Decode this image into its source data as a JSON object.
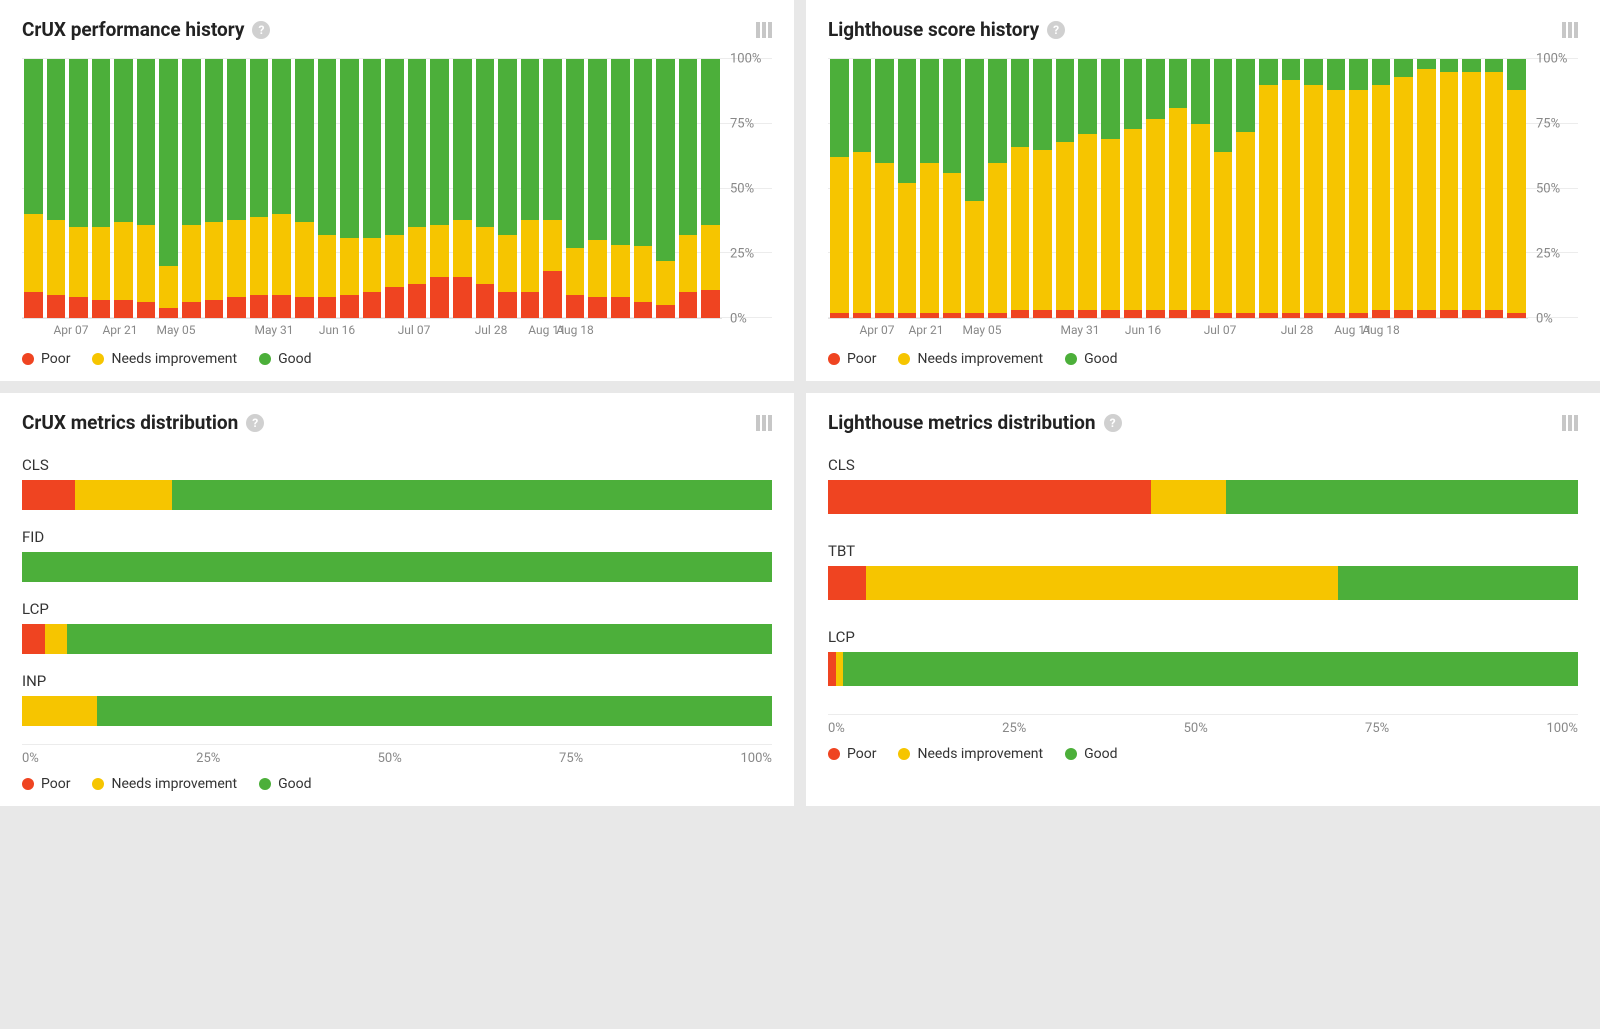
{
  "colors": {
    "poor": "#ef4421",
    "needs": "#f6c500",
    "good": "#4caf3a",
    "gridline": "#ececec",
    "axis_text": "#888888",
    "title_text": "#222222",
    "background": "#ffffff",
    "page_background": "#e8e8e8"
  },
  "legend": {
    "poor": "Poor",
    "needs": "Needs improvement",
    "good": "Good"
  },
  "history_axis": {
    "y_ticks": [
      0,
      25,
      50,
      75,
      100
    ],
    "y_tick_labels": [
      "0%",
      "25%",
      "50%",
      "75%",
      "100%"
    ],
    "x_labels": [
      "Apr 07",
      "Apr 21",
      "May 05",
      "May 31",
      "Jun 16",
      "Jul 07",
      "Jul 28",
      "Aug 11",
      "Aug 18"
    ],
    "x_label_positions_pct": [
      7,
      14,
      22,
      36,
      45,
      56,
      67,
      75,
      79
    ]
  },
  "crux_history": {
    "title": "CrUX performance history",
    "type": "stacked-bar",
    "bars": [
      {
        "poor": 10,
        "needs": 30,
        "good": 60
      },
      {
        "poor": 9,
        "needs": 29,
        "good": 62
      },
      {
        "poor": 8,
        "needs": 27,
        "good": 65
      },
      {
        "poor": 7,
        "needs": 28,
        "good": 65
      },
      {
        "poor": 7,
        "needs": 30,
        "good": 63
      },
      {
        "poor": 6,
        "needs": 30,
        "good": 64
      },
      {
        "poor": 4,
        "needs": 16,
        "good": 80
      },
      {
        "poor": 6,
        "needs": 30,
        "good": 64
      },
      {
        "poor": 7,
        "needs": 30,
        "good": 63
      },
      {
        "poor": 8,
        "needs": 30,
        "good": 62
      },
      {
        "poor": 9,
        "needs": 30,
        "good": 61
      },
      {
        "poor": 9,
        "needs": 31,
        "good": 60
      },
      {
        "poor": 8,
        "needs": 29,
        "good": 63
      },
      {
        "poor": 8,
        "needs": 24,
        "good": 68
      },
      {
        "poor": 9,
        "needs": 22,
        "good": 69
      },
      {
        "poor": 10,
        "needs": 21,
        "good": 69
      },
      {
        "poor": 12,
        "needs": 20,
        "good": 68
      },
      {
        "poor": 13,
        "needs": 22,
        "good": 65
      },
      {
        "poor": 16,
        "needs": 20,
        "good": 64
      },
      {
        "poor": 16,
        "needs": 22,
        "good": 62
      },
      {
        "poor": 13,
        "needs": 22,
        "good": 65
      },
      {
        "poor": 10,
        "needs": 22,
        "good": 68
      },
      {
        "poor": 10,
        "needs": 28,
        "good": 62
      },
      {
        "poor": 18,
        "needs": 20,
        "good": 62
      },
      {
        "poor": 9,
        "needs": 18,
        "good": 73
      },
      {
        "poor": 8,
        "needs": 22,
        "good": 70
      },
      {
        "poor": 8,
        "needs": 20,
        "good": 72
      },
      {
        "poor": 6,
        "needs": 22,
        "good": 72
      },
      {
        "poor": 5,
        "needs": 17,
        "good": 78
      },
      {
        "poor": 10,
        "needs": 22,
        "good": 68
      },
      {
        "poor": 11,
        "needs": 25,
        "good": 64
      }
    ]
  },
  "lighthouse_history": {
    "title": "Lighthouse score history",
    "type": "stacked-bar",
    "bars": [
      {
        "poor": 2,
        "needs": 60,
        "good": 38
      },
      {
        "poor": 2,
        "needs": 62,
        "good": 36
      },
      {
        "poor": 2,
        "needs": 58,
        "good": 40
      },
      {
        "poor": 2,
        "needs": 50,
        "good": 48
      },
      {
        "poor": 2,
        "needs": 58,
        "good": 40
      },
      {
        "poor": 2,
        "needs": 54,
        "good": 44
      },
      {
        "poor": 2,
        "needs": 43,
        "good": 55
      },
      {
        "poor": 2,
        "needs": 58,
        "good": 40
      },
      {
        "poor": 3,
        "needs": 63,
        "good": 34
      },
      {
        "poor": 3,
        "needs": 62,
        "good": 35
      },
      {
        "poor": 3,
        "needs": 65,
        "good": 32
      },
      {
        "poor": 3,
        "needs": 68,
        "good": 29
      },
      {
        "poor": 3,
        "needs": 66,
        "good": 31
      },
      {
        "poor": 3,
        "needs": 70,
        "good": 27
      },
      {
        "poor": 3,
        "needs": 74,
        "good": 23
      },
      {
        "poor": 3,
        "needs": 78,
        "good": 19
      },
      {
        "poor": 3,
        "needs": 72,
        "good": 25
      },
      {
        "poor": 2,
        "needs": 62,
        "good": 36
      },
      {
        "poor": 2,
        "needs": 70,
        "good": 28
      },
      {
        "poor": 2,
        "needs": 88,
        "good": 10
      },
      {
        "poor": 2,
        "needs": 90,
        "good": 8
      },
      {
        "poor": 2,
        "needs": 88,
        "good": 10
      },
      {
        "poor": 2,
        "needs": 86,
        "good": 12
      },
      {
        "poor": 2,
        "needs": 86,
        "good": 12
      },
      {
        "poor": 3,
        "needs": 87,
        "good": 10
      },
      {
        "poor": 3,
        "needs": 90,
        "good": 7
      },
      {
        "poor": 3,
        "needs": 93,
        "good": 4
      },
      {
        "poor": 3,
        "needs": 92,
        "good": 5
      },
      {
        "poor": 3,
        "needs": 92,
        "good": 5
      },
      {
        "poor": 3,
        "needs": 92,
        "good": 5
      },
      {
        "poor": 2,
        "needs": 86,
        "good": 12
      }
    ]
  },
  "crux_dist": {
    "title": "CrUX metrics distribution",
    "type": "hstacked-bar",
    "x_tick_labels": [
      "0%",
      "25%",
      "50%",
      "75%",
      "100%"
    ],
    "metrics": [
      {
        "label": "CLS",
        "poor": 7,
        "needs": 13,
        "good": 80
      },
      {
        "label": "FID",
        "poor": 0,
        "needs": 0,
        "good": 100
      },
      {
        "label": "LCP",
        "poor": 3,
        "needs": 3,
        "good": 94
      },
      {
        "label": "INP",
        "poor": 0,
        "needs": 10,
        "good": 90
      }
    ]
  },
  "lighthouse_dist": {
    "title": "Lighthouse metrics distribution",
    "type": "hstacked-bar",
    "x_tick_labels": [
      "0%",
      "25%",
      "50%",
      "75%",
      "100%"
    ],
    "metrics": [
      {
        "label": "CLS",
        "poor": 43,
        "needs": 10,
        "good": 47
      },
      {
        "label": "TBT",
        "poor": 5,
        "needs": 63,
        "good": 32
      },
      {
        "label": "LCP",
        "poor": 1,
        "needs": 1,
        "good": 98
      }
    ]
  }
}
